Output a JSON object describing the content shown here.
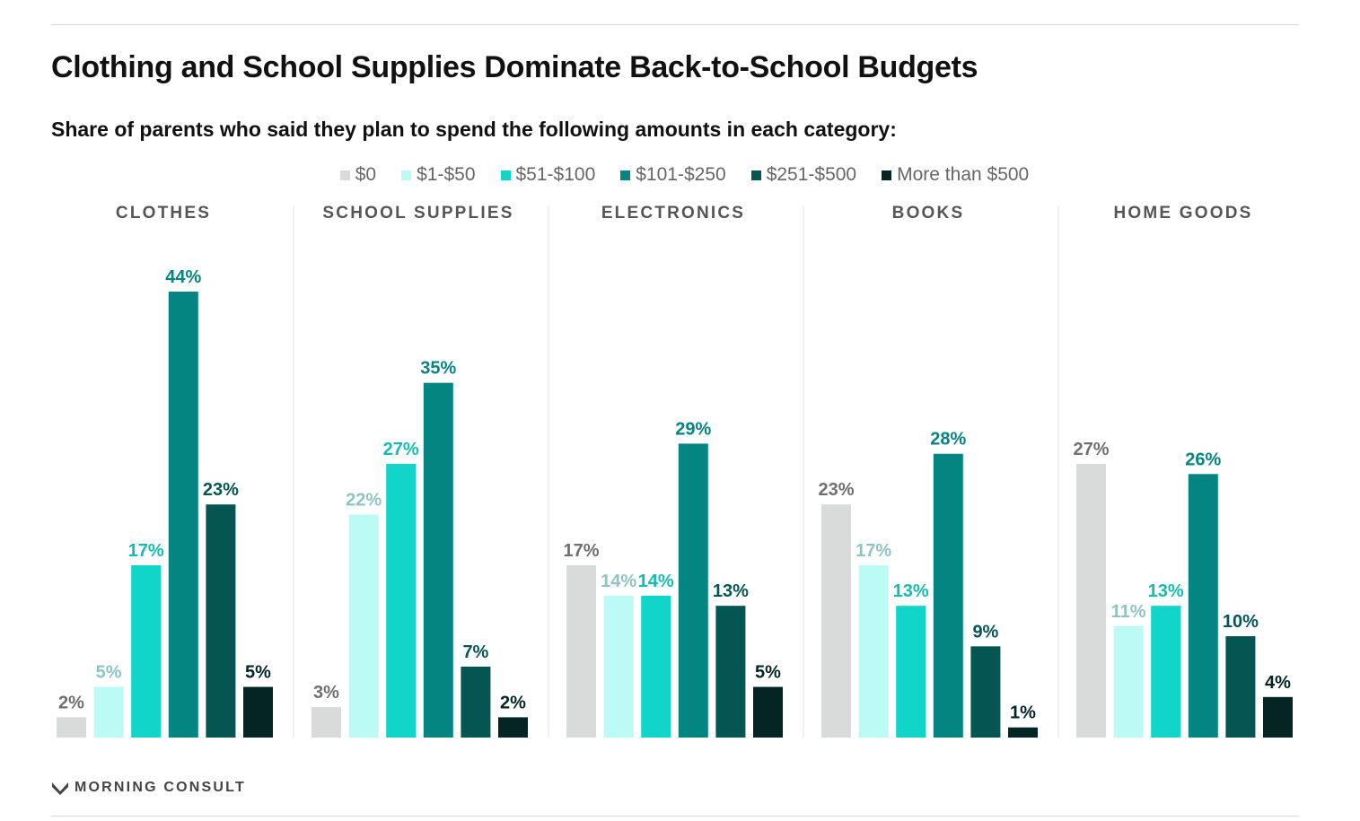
{
  "header": {
    "title": "Clothing and School Supplies Dominate Back-to-School Budgets",
    "subtitle": "Share of parents who said they plan to spend the following amounts in each category:"
  },
  "legend": [
    {
      "label": "$0",
      "color": "#d9dbdb"
    },
    {
      "label": "$1-$50",
      "color": "#bbfaf5"
    },
    {
      "label": "$51-$100",
      "color": "#10d5c8"
    },
    {
      "label": "$101-$250",
      "color": "#048582"
    },
    {
      "label": "$251-$500",
      "color": "#055653"
    },
    {
      "label": "More than $500",
      "color": "#052524"
    }
  ],
  "chart_data": {
    "type": "bar",
    "title": "Clothing and School Supplies Dominate Back-to-School Budgets",
    "categories": [
      "CLOTHES",
      "SCHOOL SUPPLIES",
      "ELECTRONICS",
      "BOOKS",
      "HOME GOODS"
    ],
    "series": [
      {
        "name": "$0",
        "values": [
          2,
          3,
          17,
          23,
          27
        ]
      },
      {
        "name": "$1-$50",
        "values": [
          5,
          22,
          14,
          17,
          11
        ]
      },
      {
        "name": "$51-$100",
        "values": [
          17,
          27,
          14,
          13,
          13
        ]
      },
      {
        "name": "$101-$250",
        "values": [
          44,
          35,
          29,
          28,
          26
        ]
      },
      {
        "name": "$251-$500",
        "values": [
          23,
          7,
          13,
          9,
          10
        ]
      },
      {
        "name": "More than $500",
        "values": [
          5,
          2,
          5,
          1,
          4
        ]
      }
    ],
    "value_suffix": "%",
    "label_colors": [
      "#6f6f6f",
      "#8fc4c1",
      "#13bdb2",
      "#048582",
      "#055653",
      "#052524"
    ],
    "ylim": [
      0,
      44
    ],
    "xlabel": "",
    "ylabel": ""
  },
  "footer": {
    "brand": "MORNING CONSULT"
  }
}
